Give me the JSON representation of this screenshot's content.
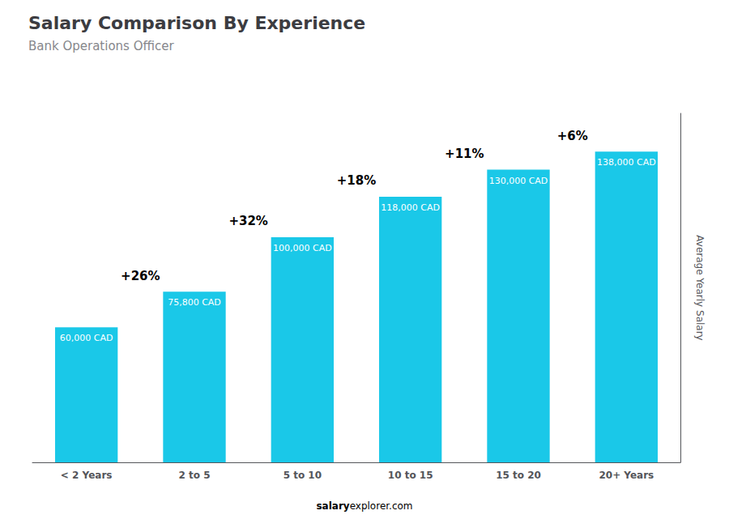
{
  "chart_data": {
    "type": "bar",
    "title": "Salary Comparison By Experience",
    "subtitle": "Bank Operations Officer",
    "categories": [
      "< 2 Years",
      "2 to 5",
      "5 to 10",
      "10 to 15",
      "15 to 20",
      "20+ Years"
    ],
    "values": [
      60000,
      75800,
      100000,
      118000,
      130000,
      138000
    ],
    "value_labels": [
      "60,000 CAD",
      "75,800 CAD",
      "100,000 CAD",
      "118,000 CAD",
      "130,000 CAD",
      "138,000 CAD"
    ],
    "data_labels": true,
    "annotations": [
      "+26%",
      "+32%",
      "+18%",
      "+11%",
      "+6%"
    ],
    "footer": [
      "salary",
      "explorer.com"
    ],
    "ylabel": "Average Yearly Salary",
    "color": "#1ac8e8",
    "ylim": [
      0,
      155000
    ],
    "tick_labels": "x",
    "grid": false
  }
}
